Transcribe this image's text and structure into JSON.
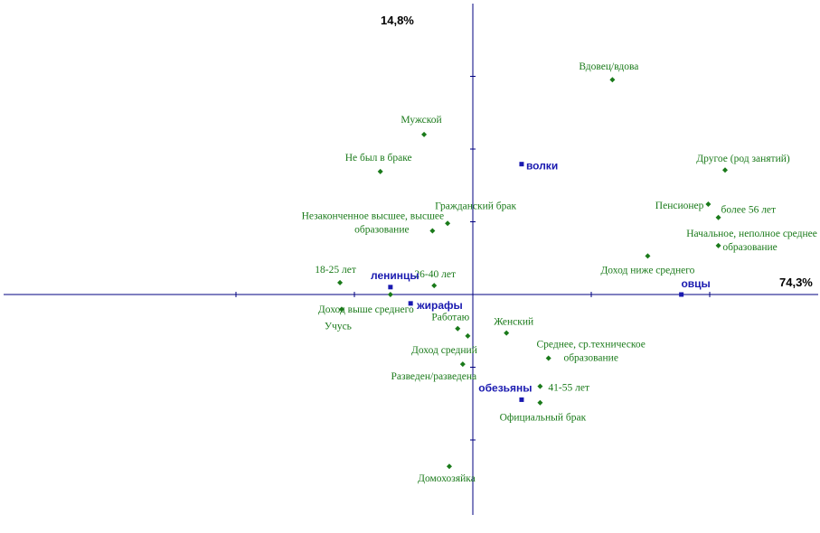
{
  "chart_data": {
    "type": "scatter",
    "title": "",
    "axes": {
      "x_inertia_label": "74,3%",
      "y_inertia_label": "14,8%",
      "xlim": [
        -1.0,
        1.45
      ],
      "ylim": [
        -1.48,
        1.95
      ]
    },
    "colors": {
      "category": "#1a7a1a",
      "group": "#1a1ab0",
      "axis": "#000080",
      "pct": "#000000"
    },
    "series": [
      {
        "name": "",
        "marker": "diamond",
        "color": "#1a7a1a",
        "points": [
          {
            "label": "Вдовец/вдова",
            "x": 0.83,
            "y": 1.45
          },
          {
            "label": "Мужской",
            "x": -0.29,
            "y": 1.08
          },
          {
            "label": "Не был в браке",
            "x": -0.55,
            "y": 0.83
          },
          {
            "label": "Другое (род занятий)",
            "x": 1.5,
            "y": 0.84
          },
          {
            "label": "Гражданский брак",
            "x": -0.15,
            "y": 0.48
          },
          {
            "label": "Пенсионер",
            "x": 1.4,
            "y": 0.61
          },
          {
            "label": "более 56 лет",
            "x": 1.46,
            "y": 0.52
          },
          {
            "label": "Незаконченное высшее, высшее образование",
            "x": -0.24,
            "y": 0.43
          },
          {
            "label": "Начальное, неполное среднее образование",
            "x": 1.46,
            "y": 0.33
          },
          {
            "label": "Доход ниже среднего",
            "x": 1.04,
            "y": 0.26
          },
          {
            "label": "18-25 лет",
            "x": -0.79,
            "y": 0.08
          },
          {
            "label": "26-40 лет",
            "x": -0.23,
            "y": 0.06
          },
          {
            "label": "Доход выше среднего",
            "x": -0.49,
            "y": 0.0
          },
          {
            "label": "Учусь",
            "x": -0.78,
            "y": -0.1
          },
          {
            "label": "Работаю",
            "x": -0.09,
            "y": -0.23
          },
          {
            "label": "Женский",
            "x": 0.2,
            "y": -0.26
          },
          {
            "label": "Доход средний",
            "x": -0.03,
            "y": -0.28
          },
          {
            "label": "Среднее, ср.техническое образование",
            "x": 0.45,
            "y": -0.43
          },
          {
            "label": "Разведен/разведена",
            "x": -0.06,
            "y": -0.47
          },
          {
            "label": "41-55 лет",
            "x": 0.4,
            "y": -0.62
          },
          {
            "label": "Официальный брак",
            "x": 0.4,
            "y": -0.73
          },
          {
            "label": "Домохозяйка",
            "x": -0.14,
            "y": -1.16
          }
        ]
      },
      {
        "name": "",
        "marker": "square",
        "color": "#1a1ab0",
        "points": [
          {
            "label": "волки",
            "x": 0.29,
            "y": 0.88
          },
          {
            "label": "ленинцы",
            "x": -0.49,
            "y": 0.05
          },
          {
            "label": "жирафы",
            "x": -0.37,
            "y": -0.06
          },
          {
            "label": "овцы",
            "x": 1.24,
            "y": 0.0
          },
          {
            "label": "обезьяны",
            "x": 0.29,
            "y": -0.71
          }
        ]
      }
    ]
  }
}
